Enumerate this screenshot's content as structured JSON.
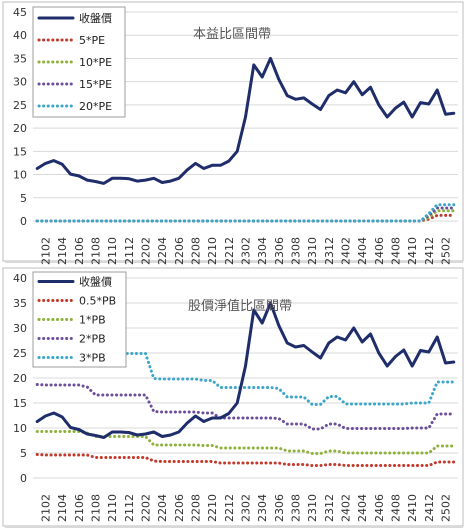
{
  "chart_data": [
    {
      "type": "line",
      "title": "本益比區間帶",
      "categories": [
        "2101",
        "2102",
        "2103",
        "2104",
        "2105",
        "2106",
        "2107",
        "2108",
        "2109",
        "2110",
        "2111",
        "2112",
        "2201",
        "2202",
        "2203",
        "2204",
        "2205",
        "2206",
        "2207",
        "2208",
        "2209",
        "2210",
        "2211",
        "2212",
        "2301",
        "2302",
        "2303",
        "2304",
        "2305",
        "2306",
        "2307",
        "2308",
        "2309",
        "2310",
        "2311",
        "2312",
        "2401",
        "2402",
        "2403",
        "2404",
        "2405",
        "2406",
        "2407",
        "2408",
        "2409",
        "2410",
        "2411",
        "2412",
        "2501",
        "2502",
        "2503"
      ],
      "x_tick_labels": [
        "2102",
        "2104",
        "2106",
        "2108",
        "2110",
        "2112",
        "2202",
        "2204",
        "2206",
        "2208",
        "2210",
        "2212",
        "2302",
        "2304",
        "2306",
        "2308",
        "2310",
        "2312",
        "2402",
        "2404",
        "2406",
        "2408",
        "2410",
        "2412",
        "2502"
      ],
      "ylim": [
        0,
        45
      ],
      "y_ticks": [
        0,
        5,
        10,
        15,
        20,
        25,
        30,
        35,
        40,
        45
      ],
      "grid": "horizontal",
      "legend_position": "top-left",
      "series": [
        {
          "name": "收盤價",
          "color": "#1f2d6b",
          "style": "solid",
          "values": [
            11.3,
            12.4,
            13.0,
            12.2,
            10.1,
            9.7,
            8.8,
            8.5,
            8.1,
            9.2,
            9.2,
            9.1,
            8.6,
            8.8,
            9.2,
            8.3,
            8.6,
            9.2,
            11.0,
            12.4,
            11.3,
            12.0,
            12.0,
            12.9,
            15.0,
            22.4,
            33.6,
            31.0,
            35.0,
            30.5,
            27.0,
            26.2,
            26.5,
            25.2,
            24.0,
            27.0,
            28.2,
            27.6,
            30.0,
            27.2,
            28.8,
            25.0,
            22.4,
            24.3,
            25.6,
            22.4,
            25.5,
            25.2,
            28.2,
            23.0,
            23.2
          ]
        },
        {
          "name": "5*PE",
          "color": "#c0392b",
          "style": "dotted",
          "values": [
            0,
            0,
            0,
            0,
            0,
            0,
            0,
            0,
            0,
            0,
            0,
            0,
            0,
            0,
            0,
            0,
            0,
            0,
            0,
            0,
            0,
            0,
            0,
            0,
            0,
            0,
            0,
            0,
            0,
            0,
            0,
            0,
            0,
            0,
            0,
            0,
            0,
            0,
            0,
            0,
            0,
            0,
            0,
            0,
            0,
            0,
            0,
            0.4,
            1.2,
            1.2,
            1.2
          ]
        },
        {
          "name": "10*PE",
          "color": "#8fb13b",
          "style": "dotted",
          "values": [
            0,
            0,
            0,
            0,
            0,
            0,
            0,
            0,
            0,
            0,
            0,
            0,
            0,
            0,
            0,
            0,
            0,
            0,
            0,
            0,
            0,
            0,
            0,
            0,
            0,
            0,
            0,
            0,
            0,
            0,
            0,
            0,
            0,
            0,
            0,
            0,
            0,
            0,
            0,
            0,
            0,
            0,
            0,
            0,
            0,
            0,
            0,
            0.8,
            2.2,
            2.2,
            2.2
          ]
        },
        {
          "name": "15*PE",
          "color": "#6b4f9b",
          "style": "dotted",
          "values": [
            0,
            0,
            0,
            0,
            0,
            0,
            0,
            0,
            0,
            0,
            0,
            0,
            0,
            0,
            0,
            0,
            0,
            0,
            0,
            0,
            0,
            0,
            0,
            0,
            0,
            0,
            0,
            0,
            0,
            0,
            0,
            0,
            0,
            0,
            0,
            0,
            0,
            0,
            0,
            0,
            0,
            0,
            0,
            0,
            0,
            0,
            0,
            1.2,
            2.8,
            2.8,
            2.8
          ]
        },
        {
          "name": "20*PE",
          "color": "#3aa6c9",
          "style": "dotted",
          "values": [
            0,
            0,
            0,
            0,
            0,
            0,
            0,
            0,
            0,
            0,
            0,
            0,
            0,
            0,
            0,
            0,
            0,
            0,
            0,
            0,
            0,
            0,
            0,
            0,
            0,
            0,
            0,
            0,
            0,
            0,
            0,
            0,
            0,
            0,
            0,
            0,
            0,
            0,
            0,
            0,
            0,
            0,
            0,
            0,
            0,
            0,
            0,
            1.6,
            3.5,
            3.5,
            3.5
          ]
        }
      ]
    },
    {
      "type": "line",
      "title": "股價淨值比區間帶",
      "categories": [
        "2101",
        "2102",
        "2103",
        "2104",
        "2105",
        "2106",
        "2107",
        "2108",
        "2109",
        "2110",
        "2111",
        "2112",
        "2201",
        "2202",
        "2203",
        "2204",
        "2205",
        "2206",
        "2207",
        "2208",
        "2209",
        "2210",
        "2211",
        "2212",
        "2301",
        "2302",
        "2303",
        "2304",
        "2305",
        "2306",
        "2307",
        "2308",
        "2309",
        "2310",
        "2311",
        "2312",
        "2401",
        "2402",
        "2403",
        "2404",
        "2405",
        "2406",
        "2407",
        "2408",
        "2409",
        "2410",
        "2411",
        "2412",
        "2501",
        "2502",
        "2503"
      ],
      "x_tick_labels": [
        "2102",
        "2104",
        "2106",
        "2108",
        "2110",
        "2112",
        "2202",
        "2204",
        "2206",
        "2208",
        "2210",
        "2212",
        "2302",
        "2304",
        "2306",
        "2308",
        "2310",
        "2312",
        "2402",
        "2404",
        "2406",
        "2408",
        "2410",
        "2412",
        "2502"
      ],
      "ylim": [
        0,
        40
      ],
      "y_ticks": [
        0,
        5,
        10,
        15,
        20,
        25,
        30,
        35,
        40
      ],
      "grid": "horizontal",
      "legend_position": "top-left",
      "series": [
        {
          "name": "收盤價",
          "color": "#1f2d6b",
          "style": "solid",
          "values": [
            11.3,
            12.4,
            13.0,
            12.2,
            10.1,
            9.7,
            8.8,
            8.5,
            8.1,
            9.2,
            9.2,
            9.1,
            8.6,
            8.8,
            9.2,
            8.3,
            8.6,
            9.2,
            11.0,
            12.4,
            11.3,
            12.0,
            12.0,
            12.9,
            15.0,
            22.4,
            33.6,
            31.0,
            35.0,
            30.5,
            27.0,
            26.2,
            26.5,
            25.2,
            24.0,
            27.0,
            28.2,
            27.6,
            30.0,
            27.2,
            28.8,
            25.0,
            22.4,
            24.3,
            25.6,
            22.4,
            25.5,
            25.2,
            28.2,
            23.0,
            23.2
          ]
        },
        {
          "name": "0.5*PB",
          "color": "#c0392b",
          "style": "dotted",
          "values": [
            4.7,
            4.6,
            4.6,
            4.6,
            4.6,
            4.6,
            4.6,
            4.1,
            4.1,
            4.1,
            4.1,
            4.1,
            4.1,
            4.1,
            3.4,
            3.3,
            3.3,
            3.3,
            3.3,
            3.3,
            3.3,
            3.3,
            3.0,
            3.0,
            3.0,
            3.0,
            3.0,
            3.0,
            3.0,
            3.0,
            2.7,
            2.7,
            2.7,
            2.5,
            2.5,
            2.7,
            2.7,
            2.5,
            2.5,
            2.5,
            2.5,
            2.5,
            2.5,
            2.5,
            2.5,
            2.5,
            2.5,
            2.5,
            3.2,
            3.2,
            3.2
          ]
        },
        {
          "name": "1*PB",
          "color": "#8fb13b",
          "style": "dotted",
          "values": [
            9.3,
            9.3,
            9.3,
            9.3,
            9.3,
            9.3,
            9.0,
            8.3,
            8.3,
            8.3,
            8.3,
            8.3,
            8.3,
            8.3,
            6.6,
            6.6,
            6.6,
            6.6,
            6.6,
            6.6,
            6.5,
            6.5,
            6.0,
            6.0,
            6.0,
            6.0,
            6.0,
            6.0,
            6.0,
            6.0,
            5.4,
            5.4,
            5.4,
            4.9,
            4.9,
            5.4,
            5.4,
            5.0,
            5.0,
            5.0,
            5.0,
            5.0,
            5.0,
            5.0,
            5.0,
            5.0,
            5.0,
            5.0,
            6.4,
            6.4,
            6.4
          ]
        },
        {
          "name": "2*PB",
          "color": "#6b4f9b",
          "style": "dotted",
          "values": [
            18.7,
            18.6,
            18.6,
            18.6,
            18.6,
            18.6,
            18.2,
            16.6,
            16.6,
            16.6,
            16.6,
            16.6,
            16.6,
            16.6,
            13.3,
            13.2,
            13.2,
            13.2,
            13.2,
            13.2,
            13.0,
            13.0,
            12.0,
            12.0,
            12.0,
            12.0,
            12.0,
            12.0,
            12.0,
            11.9,
            10.8,
            10.8,
            10.8,
            9.8,
            9.8,
            10.8,
            10.8,
            9.9,
            9.9,
            9.9,
            9.9,
            9.9,
            9.9,
            9.9,
            9.9,
            10.0,
            10.0,
            10.0,
            12.8,
            12.8,
            12.8
          ]
        },
        {
          "name": "3*PB",
          "color": "#3aa6c9",
          "style": "dotted",
          "values": [
            28.0,
            27.9,
            27.9,
            27.9,
            27.9,
            27.9,
            27.2,
            24.9,
            24.9,
            24.9,
            24.9,
            24.9,
            24.9,
            24.9,
            19.9,
            19.8,
            19.8,
            19.8,
            19.8,
            19.8,
            19.5,
            19.5,
            18.1,
            18.1,
            18.1,
            18.1,
            18.1,
            18.1,
            18.1,
            17.9,
            16.2,
            16.2,
            16.2,
            14.7,
            14.7,
            16.3,
            16.3,
            14.8,
            14.8,
            14.8,
            14.8,
            14.8,
            14.8,
            14.8,
            14.8,
            15.0,
            15.0,
            15.0,
            19.2,
            19.2,
            19.2
          ]
        }
      ]
    }
  ]
}
